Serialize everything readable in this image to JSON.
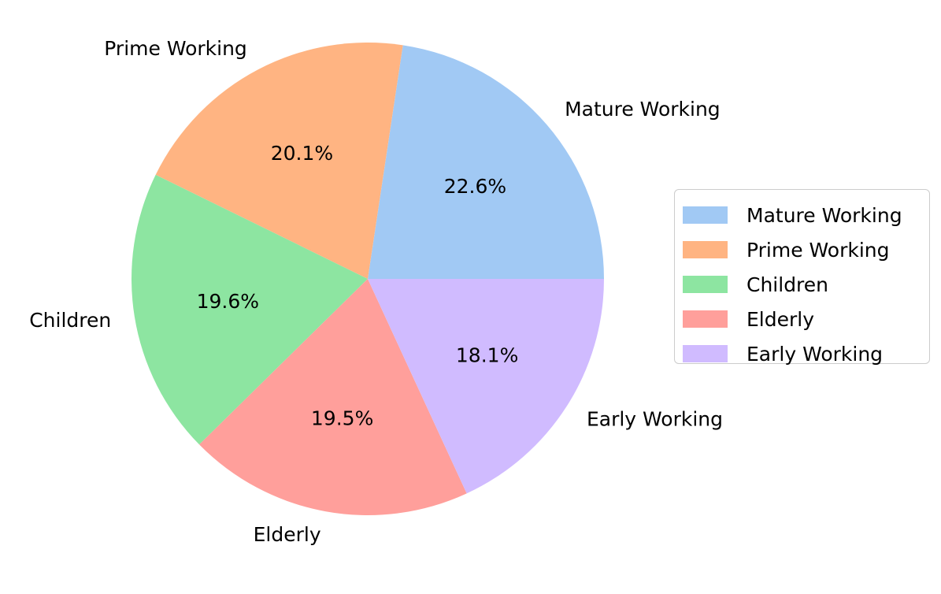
{
  "chart_data": {
    "type": "pie",
    "title": "",
    "start_angle_deg": 0,
    "direction": "counterclockwise",
    "legend_position": "right",
    "slices": [
      {
        "label": "Mature Working",
        "value": 22.6,
        "display": "22.6%",
        "color": "#a1c9f4"
      },
      {
        "label": "Prime Working",
        "value": 20.1,
        "display": "20.1%",
        "color": "#ffb482"
      },
      {
        "label": "Children",
        "value": 19.6,
        "display": "19.6%",
        "color": "#8de5a1"
      },
      {
        "label": "Elderly",
        "value": 19.5,
        "display": "19.5%",
        "color": "#ff9f9b"
      },
      {
        "label": "Early Working",
        "value": 18.1,
        "display": "18.1%",
        "color": "#d0bbff"
      }
    ]
  }
}
